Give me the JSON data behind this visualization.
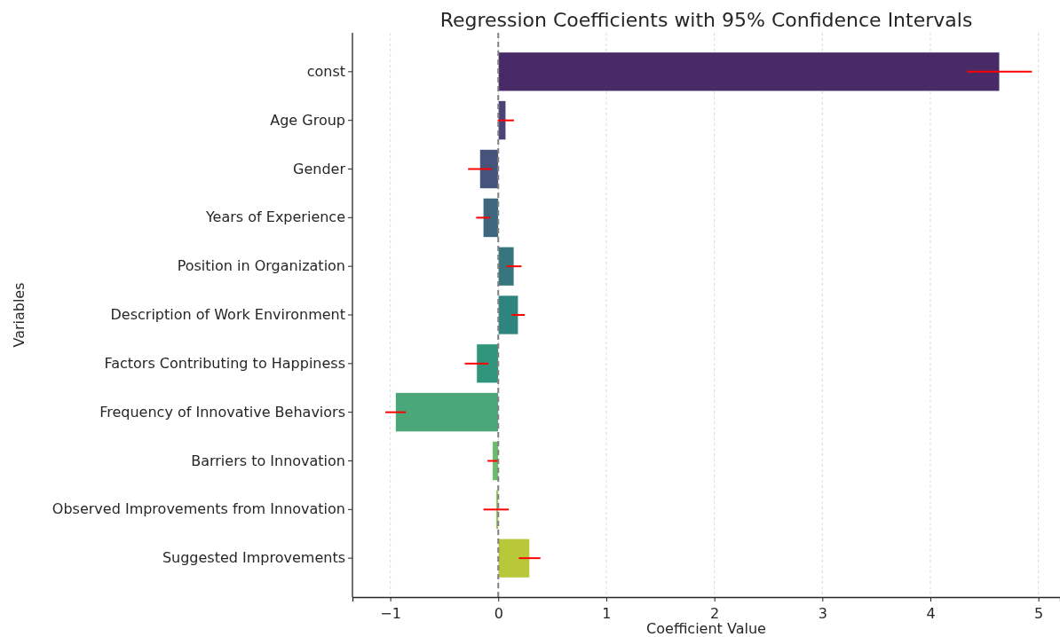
{
  "chart_data": {
    "type": "bar",
    "orientation": "horizontal",
    "title": "Regression Coefficients with 95% Confidence Intervals",
    "xlabel": "Coefficient Value",
    "ylabel": "Variables",
    "categories": [
      "const",
      "Age Group",
      "Gender",
      "Years of Experience",
      "Position in Organization",
      "Description of Work Environment",
      "Factors Contributing to Happiness",
      "Frequency of Innovative Behaviors",
      "Barriers to Innovation",
      "Observed Improvements from Innovation",
      "Suggested Improvements"
    ],
    "values": [
      4.64,
      0.07,
      -0.17,
      -0.14,
      0.145,
      0.185,
      -0.2,
      -0.95,
      -0.053,
      -0.02,
      0.29
    ],
    "errors": [
      0.3,
      0.075,
      0.11,
      0.065,
      0.07,
      0.06,
      0.11,
      0.095,
      0.047,
      0.117,
      0.1
    ],
    "colors": [
      "#482a67",
      "#4a437a",
      "#46547c",
      "#3e667f",
      "#37767f",
      "#2e8580",
      "#31957c",
      "#49a779",
      "#6bbb6c",
      "#95c65a",
      "#b8c838"
    ],
    "xlim": [
      -1.35,
      5.2
    ],
    "xticks": [
      {
        "value": -1,
        "label": "−1"
      },
      0,
      1,
      2,
      3,
      4,
      5
    ],
    "grid": "x",
    "ref_lines": [
      {
        "axis": "x",
        "value": 0,
        "color": "#808080",
        "line_style": "dashed"
      }
    ]
  }
}
